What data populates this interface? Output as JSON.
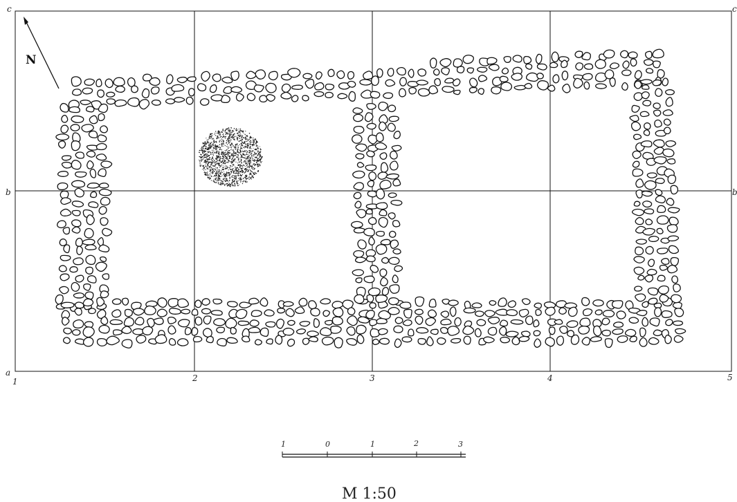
{
  "north": {
    "label": "N"
  },
  "grid": {
    "column_labels": [
      "1",
      "2",
      "3",
      "4",
      "5"
    ],
    "row_labels": [
      "a",
      "b",
      "c"
    ],
    "right_row_labels": [
      "b",
      "c"
    ]
  },
  "scale_bar": {
    "ticks": [
      "1",
      "0",
      "1",
      "2",
      "3"
    ],
    "ratio_label": "M 1:50"
  }
}
